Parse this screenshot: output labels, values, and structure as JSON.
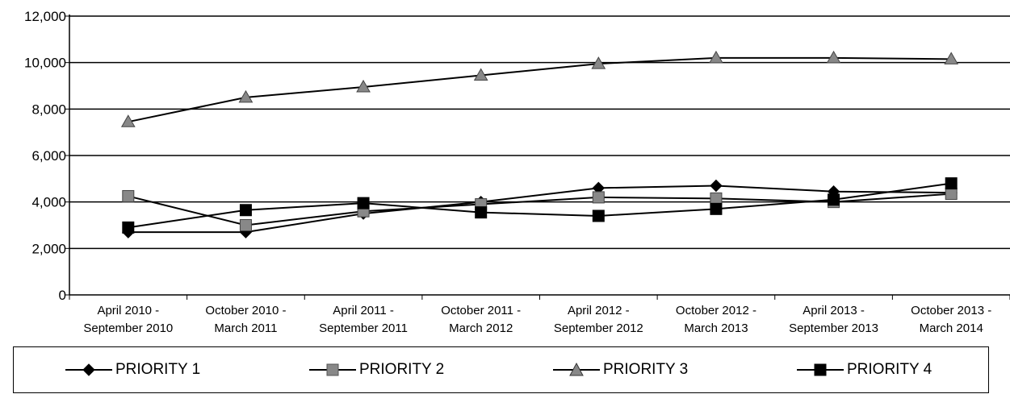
{
  "chart_data": {
    "type": "line",
    "title": "",
    "xlabel": "",
    "ylabel": "",
    "ylim": [
      0,
      12000
    ],
    "yticks": [
      "0",
      "2,000",
      "4,000",
      "6,000",
      "8,000",
      "10,000",
      "12,000"
    ],
    "grid": "horizontal",
    "legend_position": "bottom",
    "categories": [
      [
        "April 2010 -",
        "September 2010"
      ],
      [
        "October 2010 -",
        "March 2011"
      ],
      [
        "April 2011 -",
        "September 2011"
      ],
      [
        "October 2011 -",
        "March 2012"
      ],
      [
        "April 2012 -",
        "September 2012"
      ],
      [
        "October 2012 -",
        "March 2013"
      ],
      [
        "April 2013 -",
        "September 2013"
      ],
      [
        "October 2013 -",
        "March 2014"
      ]
    ],
    "series": [
      {
        "name": "PRIORITY 1",
        "marker": "diamond",
        "color": "#000000",
        "values": [
          2700,
          2700,
          3500,
          4000,
          4600,
          4700,
          4450,
          4400
        ]
      },
      {
        "name": "PRIORITY 2",
        "marker": "square",
        "color": "#888888",
        "values": [
          4250,
          3000,
          3600,
          3900,
          4200,
          4150,
          4000,
          4350
        ]
      },
      {
        "name": "PRIORITY 3",
        "marker": "triangle",
        "color": "#888888",
        "values": [
          7450,
          8500,
          8950,
          9450,
          9950,
          10200,
          10200,
          10150
        ]
      },
      {
        "name": "PRIORITY 4",
        "marker": "square",
        "color": "#000000",
        "values": [
          2900,
          3650,
          3950,
          3550,
          3400,
          3700,
          4100,
          4800
        ]
      }
    ]
  }
}
